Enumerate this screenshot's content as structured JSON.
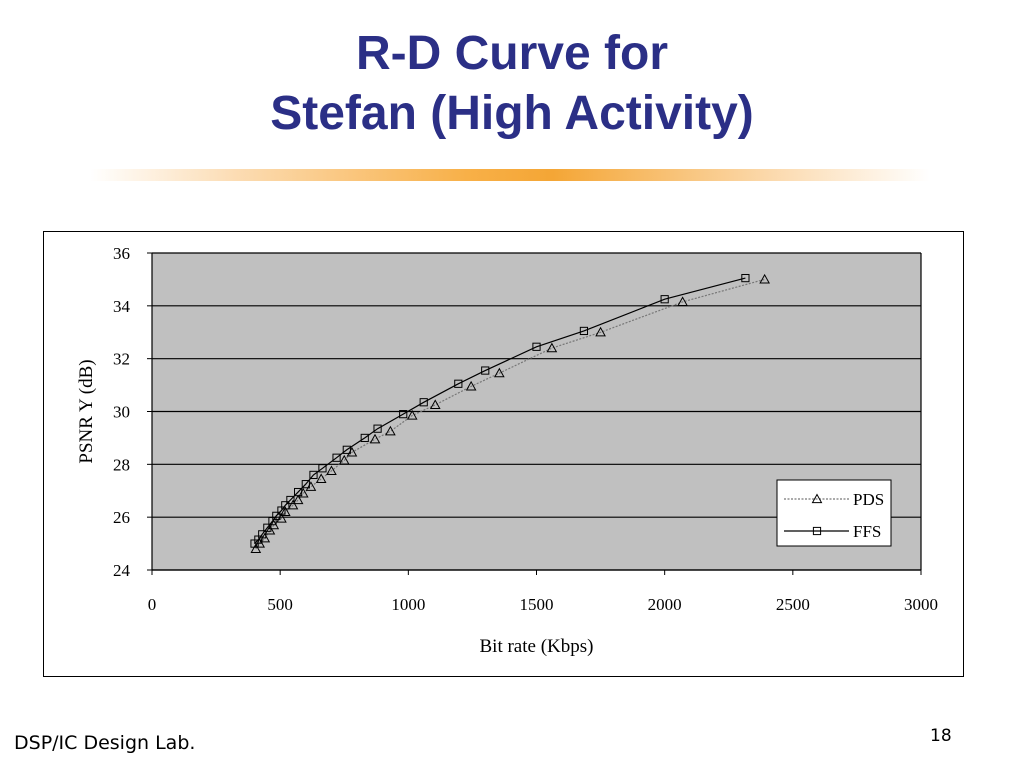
{
  "slide": {
    "title_line1": "R-D Curve for",
    "title_line2": "Stefan (High Activity)",
    "footer": "DSP/IC Design Lab.",
    "page_number": "18",
    "title_color": "#2b2f86",
    "accent_color": "#f39c1f"
  },
  "chart_data": {
    "type": "line",
    "title": "",
    "xlabel": "Bit rate (Kbps)",
    "ylabel": "PSNR Y (dB)",
    "xlim": [
      0,
      3000
    ],
    "ylim": [
      24,
      36
    ],
    "xticks": [
      0,
      500,
      1000,
      1500,
      2000,
      2500,
      3000
    ],
    "yticks": [
      24,
      26,
      28,
      30,
      32,
      34,
      36
    ],
    "grid": "horizontal",
    "plot_background": "#c0c0c0",
    "legend_position": "right",
    "series": [
      {
        "name": "PDS",
        "marker": "triangle",
        "line_style": "dotted",
        "line_color": "#777777",
        "points": [
          [
            405,
            24.8
          ],
          [
            420,
            25.0
          ],
          [
            440,
            25.2
          ],
          [
            460,
            25.5
          ],
          [
            475,
            25.7
          ],
          [
            505,
            25.95
          ],
          [
            520,
            26.2
          ],
          [
            550,
            26.45
          ],
          [
            570,
            26.65
          ],
          [
            590,
            26.9
          ],
          [
            620,
            27.15
          ],
          [
            660,
            27.45
          ],
          [
            700,
            27.75
          ],
          [
            750,
            28.15
          ],
          [
            780,
            28.45
          ],
          [
            870,
            28.95
          ],
          [
            930,
            29.25
          ],
          [
            1015,
            29.85
          ],
          [
            1105,
            30.25
          ],
          [
            1245,
            30.95
          ],
          [
            1355,
            31.45
          ],
          [
            1560,
            32.4
          ],
          [
            1750,
            33.0
          ],
          [
            2070,
            34.15
          ],
          [
            2390,
            35.0
          ]
        ]
      },
      {
        "name": "FFS",
        "marker": "square",
        "line_style": "solid",
        "line_color": "#000000",
        "points": [
          [
            400,
            25.0
          ],
          [
            415,
            25.15
          ],
          [
            430,
            25.35
          ],
          [
            450,
            25.6
          ],
          [
            470,
            25.85
          ],
          [
            485,
            26.05
          ],
          [
            505,
            26.25
          ],
          [
            520,
            26.45
          ],
          [
            540,
            26.65
          ],
          [
            570,
            26.95
          ],
          [
            600,
            27.25
          ],
          [
            630,
            27.6
          ],
          [
            665,
            27.85
          ],
          [
            720,
            28.25
          ],
          [
            760,
            28.55
          ],
          [
            830,
            29.0
          ],
          [
            880,
            29.35
          ],
          [
            980,
            29.9
          ],
          [
            1060,
            30.35
          ],
          [
            1195,
            31.05
          ],
          [
            1300,
            31.55
          ],
          [
            1500,
            32.45
          ],
          [
            1685,
            33.05
          ],
          [
            2000,
            34.25
          ],
          [
            2315,
            35.05
          ]
        ]
      }
    ]
  }
}
